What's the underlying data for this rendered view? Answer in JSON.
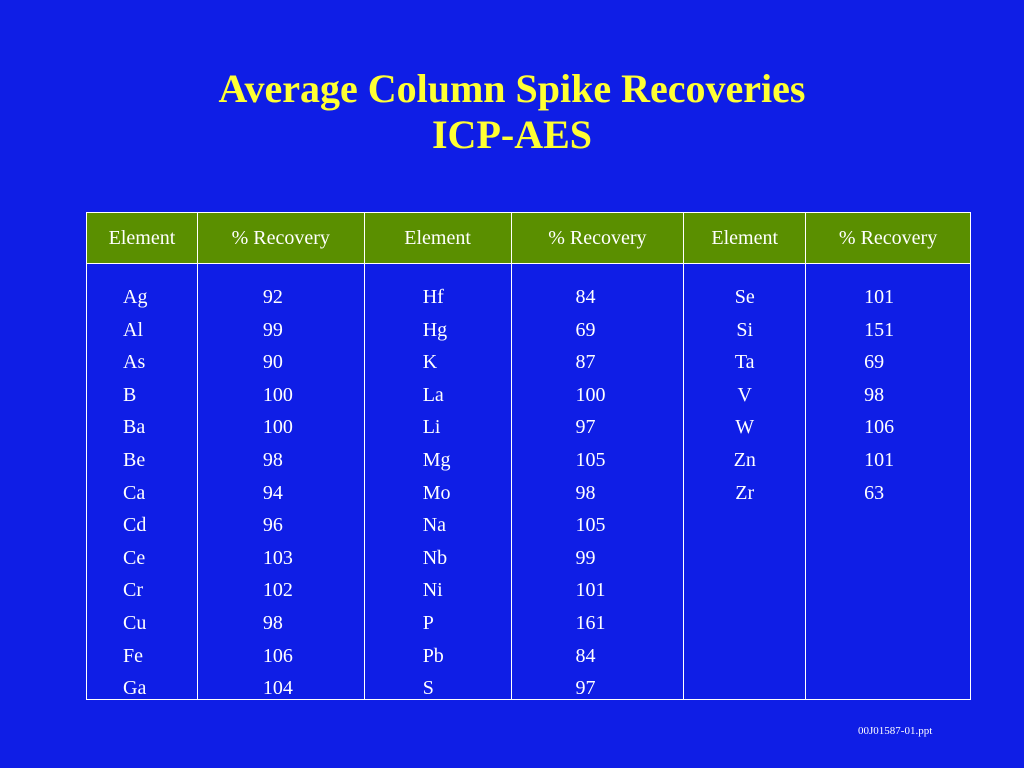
{
  "title": {
    "line1": "Average Column Spike Recoveries",
    "line2": "ICP-AES"
  },
  "table": {
    "headers": [
      "Element",
      "% Recovery",
      "Element",
      "% Recovery",
      "Element",
      "% Recovery"
    ],
    "columns": [
      [
        "Ag",
        "Al",
        "As",
        "B",
        "Ba",
        "Be",
        "Ca",
        "Cd",
        "Ce",
        "Cr",
        "Cu",
        "Fe",
        "Ga"
      ],
      [
        "92",
        "99",
        "90",
        "100",
        "100",
        "98",
        "94",
        "96",
        "103",
        "102",
        "98",
        "106",
        "104"
      ],
      [
        "Hf",
        "Hg",
        "K",
        "La",
        "Li",
        "Mg",
        "Mo",
        "Na",
        "Nb",
        "Ni",
        "P",
        "Pb",
        "S"
      ],
      [
        "84",
        "69",
        "87",
        "100",
        "97",
        "105",
        "98",
        "105",
        "99",
        "101",
        "161",
        "84",
        "97"
      ],
      [
        "Se",
        "Si",
        "Ta",
        "V",
        "W",
        "Zn",
        "Zr"
      ],
      [
        "101",
        "151",
        "69",
        "98",
        "106",
        "101",
        "63"
      ]
    ]
  },
  "footer": "00J01587-01.ppt",
  "colors": {
    "background": "#0f1ee6",
    "title": "#ffff33",
    "header_fill": "#5a8f00",
    "text": "#ffffff"
  }
}
